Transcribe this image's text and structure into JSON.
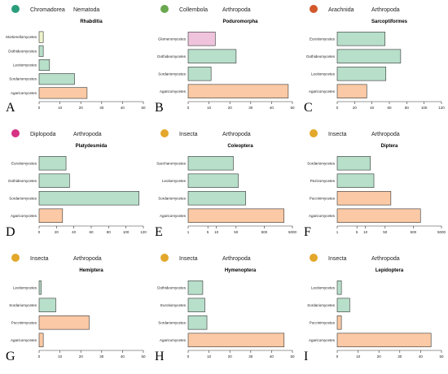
{
  "colors": {
    "fungal": "#b7dfca",
    "agaricomycetes": "#fbc9a5",
    "mortierellomycetes": "#eef3cc",
    "glomeromycetes": "#f0c3dd",
    "bar_stroke": "#333333",
    "dot_nematoda": "#2a9d7a",
    "dot_arthropoda_collembola": "#6aa84f",
    "dot_arachnida": "#d2572b",
    "dot_diplopoda": "#d63384",
    "dot_insecta": "#e3a82b"
  },
  "panels": [
    {
      "letter": "A",
      "class_name": "Chromadorea",
      "phylum": "Nematoda",
      "dot": "dot_nematoda",
      "title": "Rhabditia"
    },
    {
      "letter": "B",
      "class_name": "Collembola",
      "phylum": "Arthropoda",
      "dot": "dot_arthropoda_collembola",
      "title": "Poduromorpha"
    },
    {
      "letter": "C",
      "class_name": "Arachnida",
      "phylum": "Arthropoda",
      "dot": "dot_arachnida",
      "title": "Sarcoptiformes"
    },
    {
      "letter": "D",
      "class_name": "Diplopoda",
      "phylum": "Arthropoda",
      "dot": "dot_diplopoda",
      "title": "Platydesmida"
    },
    {
      "letter": "E",
      "class_name": "Insecta",
      "phylum": "Arthropoda",
      "dot": "dot_insecta",
      "title": "Coleoptera"
    },
    {
      "letter": "F",
      "class_name": "Insecta",
      "phylum": "Arthropoda",
      "dot": "dot_insecta",
      "title": "Diptera"
    },
    {
      "letter": "G",
      "class_name": "Insecta",
      "phylum": "Arthropoda",
      "dot": "dot_insecta",
      "title": "Hemiptera"
    },
    {
      "letter": "H",
      "class_name": "Insecta",
      "phylum": "Arthropoda",
      "dot": "dot_insecta",
      "title": "Hymenoptera"
    },
    {
      "letter": "I",
      "class_name": "Insecta",
      "phylum": "Arthropoda",
      "dot": "dot_insecta",
      "title": "Lepidoptera"
    }
  ],
  "chart_data": [
    {
      "type": "bar",
      "orientation": "horizontal",
      "title": "Rhabditia",
      "categories": [
        "Mortierellomycetes",
        "Dothideomycetes",
        "Leotiomycetes",
        "Sordariomycetes",
        "Agaricomycetes"
      ],
      "values": [
        2,
        2,
        5,
        17,
        23
      ],
      "colors": [
        "mortierellomycetes",
        "fungal",
        "fungal",
        "fungal",
        "agaricomycetes"
      ],
      "xscale": "linear",
      "xlim": [
        0,
        50
      ],
      "ticks": [
        0,
        10,
        20,
        30,
        40,
        50
      ],
      "tick_labels": [
        "0",
        "10",
        "20",
        "30",
        "40",
        "50"
      ]
    },
    {
      "type": "bar",
      "orientation": "horizontal",
      "title": "Poduromorpha",
      "categories": [
        "Glomeromycetes",
        "Dothideomycetes",
        "Sordariomycetes",
        "Agaricomycetes"
      ],
      "values": [
        13,
        23,
        11,
        48
      ],
      "colors": [
        "glomeromycetes",
        "fungal",
        "fungal",
        "agaricomycetes"
      ],
      "xscale": "linear",
      "xlim": [
        0,
        50
      ],
      "ticks": [
        0,
        10,
        20,
        30,
        40,
        50
      ],
      "tick_labels": [
        "0",
        "10",
        "20",
        "30",
        "40",
        "50"
      ]
    },
    {
      "type": "bar",
      "orientation": "horizontal",
      "title": "Sarcoptiformes",
      "categories": [
        "Eurotiomycetes",
        "Dothideomycetes",
        "Leotiomycetes",
        "Agaricomycetes"
      ],
      "values": [
        55,
        73,
        56,
        34
      ],
      "colors": [
        "fungal",
        "fungal",
        "fungal",
        "agaricomycetes"
      ],
      "xscale": "linear",
      "xlim": [
        0,
        120
      ],
      "ticks": [
        0,
        20,
        40,
        60,
        80,
        100,
        120
      ],
      "tick_labels": [
        "0",
        "20",
        "40",
        "60",
        "80",
        "100",
        "120"
      ]
    },
    {
      "type": "bar",
      "orientation": "horizontal",
      "title": "Platydesmida",
      "categories": [
        "Eurotiomycetes",
        "Dothideomycetes",
        "Sordariomycetes",
        "Agaricomycetes"
      ],
      "values": [
        31,
        35,
        115,
        27
      ],
      "colors": [
        "fungal",
        "fungal",
        "fungal",
        "agaricomycetes"
      ],
      "xscale": "linear",
      "xlim": [
        0,
        120
      ],
      "ticks": [
        0,
        20,
        40,
        60,
        80,
        100,
        120
      ],
      "tick_labels": [
        "0",
        "20",
        "40",
        "60",
        "80",
        "100",
        "120"
      ]
    },
    {
      "type": "bar",
      "orientation": "horizontal",
      "title": "Coleoptera",
      "categories": [
        "Saccharomycetes",
        "Leotiomycetes",
        "Sordariomycetes",
        "Agaricomycetes"
      ],
      "values": [
        40,
        60,
        110,
        2500
      ],
      "colors": [
        "fungal",
        "fungal",
        "fungal",
        "agaricomycetes"
      ],
      "xscale": "log",
      "xlim": [
        1,
        5000
      ],
      "ticks": [
        1,
        5,
        10,
        50,
        500,
        5000
      ],
      "tick_labels": [
        "1",
        "5",
        "10",
        "50",
        "500",
        "5000"
      ]
    },
    {
      "type": "bar",
      "orientation": "horizontal",
      "title": "Diptera",
      "categories": [
        "Sordariomycetes",
        "Pezizomycetes",
        "Puccinimycetes",
        "Agaricomycetes"
      ],
      "values": [
        15,
        20,
        80,
        900
      ],
      "colors": [
        "fungal",
        "fungal",
        "agaricomycetes",
        "agaricomycetes"
      ],
      "xscale": "log",
      "xlim": [
        1,
        5000
      ],
      "ticks": [
        1,
        5,
        10,
        50,
        500,
        5000
      ],
      "tick_labels": [
        "1",
        "5",
        "10",
        "50",
        "500",
        "5000"
      ]
    },
    {
      "type": "bar",
      "orientation": "horizontal",
      "title": "Hemiptera",
      "categories": [
        "Leotiomycetes",
        "Sordariomycetes",
        "Puccinimycetes",
        "Agaricomycetes"
      ],
      "values": [
        1,
        8,
        24,
        2
      ],
      "colors": [
        "fungal",
        "fungal",
        "agaricomycetes",
        "agaricomycetes"
      ],
      "xscale": "linear",
      "xlim": [
        0,
        50
      ],
      "ticks": [
        0,
        10,
        20,
        30,
        40,
        50
      ],
      "tick_labels": [
        "0",
        "10",
        "20",
        "30",
        "40",
        "50"
      ]
    },
    {
      "type": "bar",
      "orientation": "horizontal",
      "title": "Hymenoptera",
      "categories": [
        "Dothideomycetes",
        "Eurotiomycetes",
        "Sordariomycetes",
        "Agaricomycetes"
      ],
      "values": [
        7,
        8,
        9,
        46
      ],
      "colors": [
        "fungal",
        "fungal",
        "fungal",
        "agaricomycetes"
      ],
      "xscale": "linear",
      "xlim": [
        0,
        50
      ],
      "ticks": [
        0,
        10,
        20,
        30,
        40,
        50
      ],
      "tick_labels": [
        "0",
        "10",
        "20",
        "30",
        "40",
        "50"
      ]
    },
    {
      "type": "bar",
      "orientation": "horizontal",
      "title": "Lepidoptera",
      "categories": [
        "Leotiomycetes",
        "Sordariomycetes",
        "Puccinimycetes",
        "Agaricomycetes"
      ],
      "values": [
        2,
        6,
        2,
        45
      ],
      "colors": [
        "fungal",
        "fungal",
        "agaricomycetes",
        "agaricomycetes"
      ],
      "xscale": "linear",
      "xlim": [
        0,
        50
      ],
      "ticks": [
        0,
        10,
        20,
        30,
        40,
        50
      ],
      "tick_labels": [
        "0",
        "10",
        "20",
        "30",
        "40",
        "50"
      ]
    }
  ]
}
